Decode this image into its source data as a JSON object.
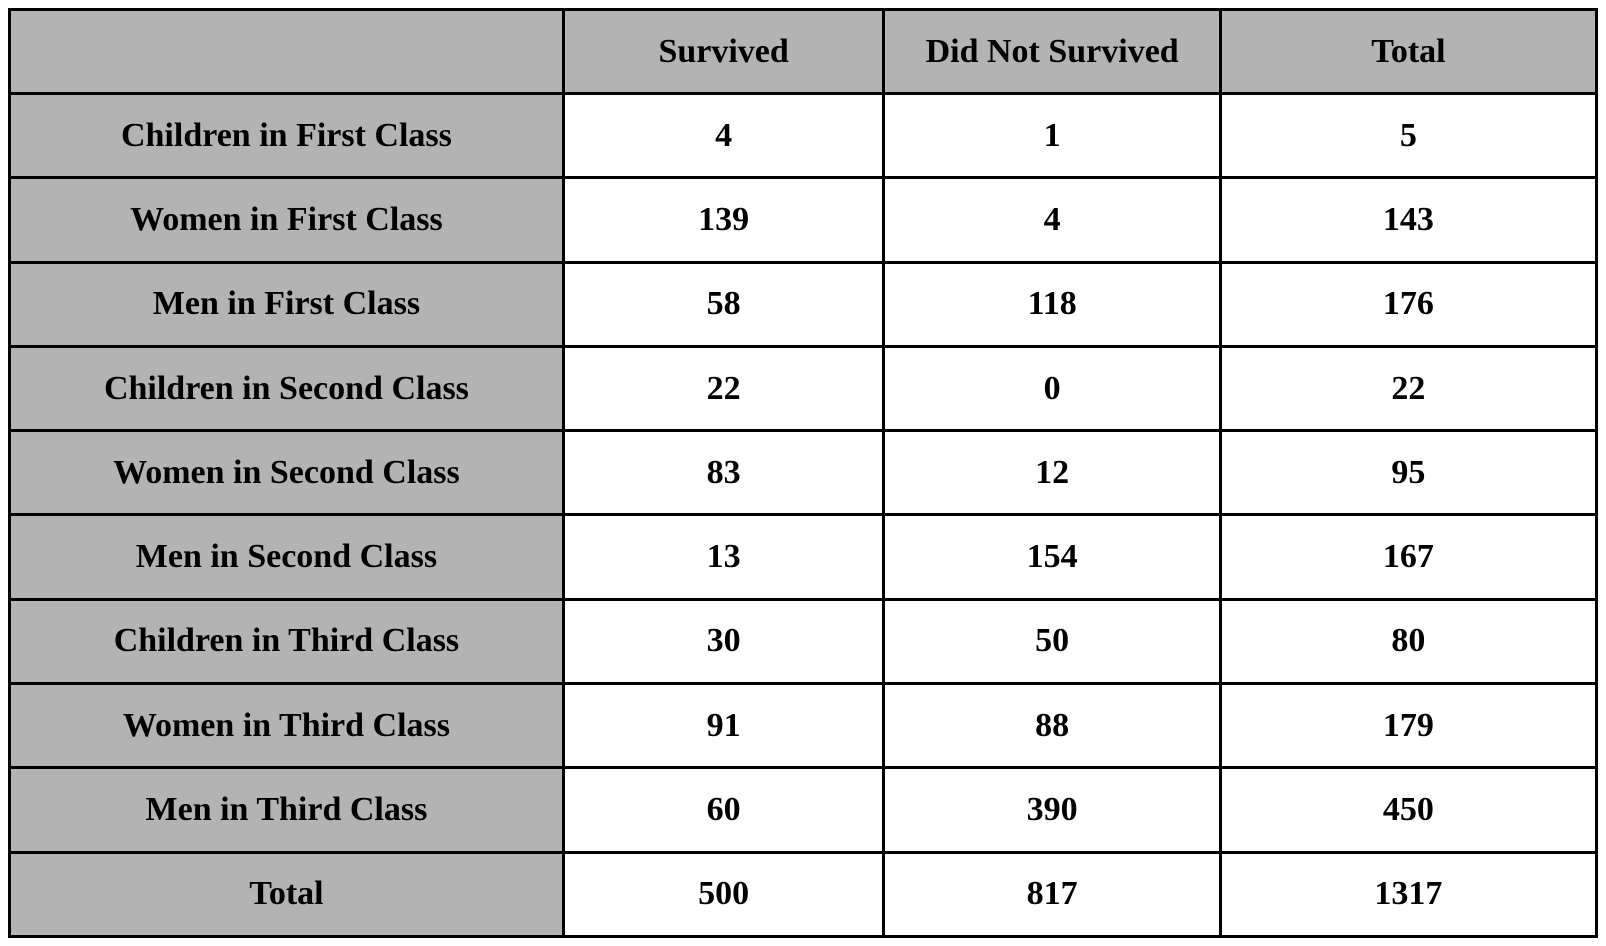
{
  "chart_data": {
    "type": "table",
    "title": "",
    "columns": [
      "",
      "Survived",
      "Did Not Survived",
      "Total"
    ],
    "rows": [
      {
        "label": "Children in First Class",
        "values": [
          4,
          1,
          5
        ]
      },
      {
        "label": "Women in First Class",
        "values": [
          139,
          4,
          143
        ]
      },
      {
        "label": "Men in First Class",
        "values": [
          58,
          118,
          176
        ]
      },
      {
        "label": "Children in Second Class",
        "values": [
          22,
          0,
          22
        ]
      },
      {
        "label": "Women in Second Class",
        "values": [
          83,
          12,
          95
        ]
      },
      {
        "label": "Men in Second Class",
        "values": [
          13,
          154,
          167
        ]
      },
      {
        "label": "Children in Third Class",
        "values": [
          30,
          50,
          80
        ]
      },
      {
        "label": "Women in Third Class",
        "values": [
          91,
          88,
          179
        ]
      },
      {
        "label": "Men in Third Class",
        "values": [
          60,
          390,
          450
        ]
      },
      {
        "label": "Total",
        "values": [
          500,
          817,
          1317
        ]
      }
    ],
    "colors": {
      "header_bg": "#b3b3b3",
      "label_bg": "#b3b3b3",
      "cell_bg": "#ffffff",
      "border": "#000000",
      "text": "#000000"
    },
    "layout": {
      "grid": "all-borders",
      "text_align": "center",
      "legend": "none"
    }
  }
}
